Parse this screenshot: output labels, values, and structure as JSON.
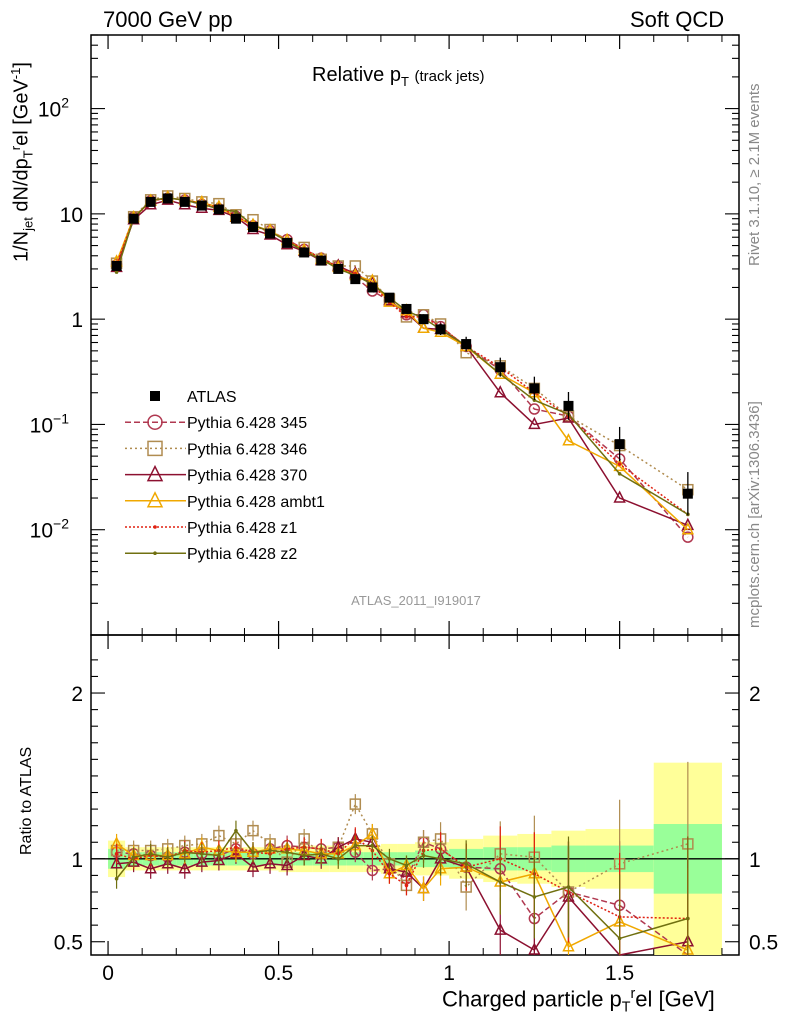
{
  "header": {
    "left": "7000 GeV pp",
    "right": "Soft QCD"
  },
  "side_text": {
    "rivet": "Rivet 3.1.10, ≥ 2.1M events",
    "mcplots": "mcplots.cern.ch [arXiv:1306.3436]"
  },
  "colors": {
    "data": "#000000",
    "p345": "#b03850",
    "p346": "#b08c50",
    "p370": "#8c1030",
    "ambt1": "#f0a800",
    "z1": "#e02010",
    "z2": "#707010",
    "band_inner": "#99ff99",
    "band_outer": "#ffff99"
  },
  "chart_data": [
    {
      "type": "line",
      "title": "Relative p_T (track jets)",
      "ylabel": "1/N_jet dN/dp_T^rel [GeV^-1]",
      "xlabel": "",
      "yscale": "log",
      "xlim": [
        -0.05,
        1.85
      ],
      "ylim": [
        0.001,
        500
      ],
      "x_ticks": [
        "0",
        "0.5",
        "1",
        "1.5"
      ],
      "y_ticks": [
        "10^-2",
        "10^-1",
        "1",
        "10",
        "10^2"
      ],
      "watermark": "ATLAS_2011_I919017",
      "legend_position": "middle-left",
      "x": [
        0.025,
        0.075,
        0.125,
        0.175,
        0.225,
        0.275,
        0.325,
        0.375,
        0.425,
        0.475,
        0.525,
        0.575,
        0.625,
        0.675,
        0.725,
        0.775,
        0.825,
        0.875,
        0.925,
        0.975,
        1.05,
        1.15,
        1.25,
        1.35,
        1.5,
        1.7
      ],
      "series": [
        {
          "name": "ATLAS",
          "values": [
            3.2,
            9.0,
            13.0,
            14.0,
            13.0,
            12.0,
            11.0,
            9.0,
            7.5,
            6.5,
            5.3,
            4.3,
            3.6,
            3.0,
            2.4,
            2.0,
            1.6,
            1.25,
            1.0,
            0.8,
            0.58,
            0.35,
            0.22,
            0.15,
            0.065,
            0.022
          ]
        },
        {
          "name": "Pythia 6.428 345",
          "values": [
            3.3,
            9.3,
            13.3,
            14.1,
            13.5,
            12.3,
            11.2,
            9.5,
            7.7,
            6.9,
            5.7,
            4.6,
            3.8,
            3.2,
            2.5,
            1.85,
            1.5,
            1.1,
            1.1,
            0.85,
            0.55,
            0.33,
            0.14,
            0.12,
            0.047,
            0.0085
          ]
        },
        {
          "name": "Pythia 6.428 346",
          "values": [
            3.4,
            9.4,
            13.6,
            14.8,
            14.0,
            13.0,
            12.5,
            9.8,
            8.8,
            7.1,
            5.2,
            4.8,
            3.7,
            3.2,
            3.2,
            2.3,
            1.55,
            1.05,
            1.1,
            0.9,
            0.48,
            0.36,
            0.22,
            0.12,
            0.063,
            0.024
          ]
        },
        {
          "name": "Pythia 6.428 370",
          "values": [
            3.1,
            8.8,
            12.2,
            13.5,
            12.2,
            11.3,
            10.8,
            9.3,
            7.1,
            6.3,
            5.1,
            4.4,
            3.6,
            3.2,
            2.7,
            2.2,
            1.5,
            1.15,
            0.82,
            0.8,
            0.55,
            0.2,
            0.1,
            0.115,
            0.02,
            0.011
          ]
        },
        {
          "name": "Pythia 6.428 ambt1",
          "values": [
            3.5,
            9.2,
            13.2,
            14.3,
            13.4,
            12.8,
            11.6,
            9.4,
            7.8,
            6.9,
            5.6,
            4.5,
            3.7,
            3.1,
            2.6,
            2.3,
            1.45,
            1.2,
            0.82,
            0.75,
            0.55,
            0.3,
            0.2,
            0.07,
            0.04,
            0.01
          ]
        },
        {
          "name": "Pythia 6.428 z1",
          "values": [
            3.3,
            9.0,
            13.2,
            14.1,
            13.6,
            12.5,
            11.6,
            9.6,
            7.8,
            6.7,
            5.6,
            4.6,
            3.8,
            3.1,
            2.7,
            2.1,
            1.45,
            1.05,
            1.05,
            0.85,
            0.55,
            0.35,
            0.2,
            0.12,
            0.042,
            0.014
          ]
        },
        {
          "name": "Pythia 6.428 z2",
          "values": [
            2.8,
            9.1,
            13.4,
            14.2,
            13.5,
            12.3,
            11.2,
            10.5,
            7.8,
            6.8,
            5.5,
            4.4,
            3.7,
            3.0,
            2.6,
            2.15,
            1.6,
            1.2,
            1.02,
            0.8,
            0.56,
            0.3,
            0.17,
            0.125,
            0.034,
            0.014
          ]
        }
      ]
    },
    {
      "type": "line",
      "ylabel": "Ratio to ATLAS",
      "xlabel": "Charged particle p_T^rel [GeV]",
      "xlim": [
        -0.05,
        1.85
      ],
      "ylim": [
        0.42,
        2.35
      ],
      "y_ticks": [
        "0.5",
        "1",
        "2"
      ],
      "x_ticks": [
        "0",
        "0.5",
        "1",
        "1.5"
      ],
      "band_edges": [
        0.0,
        0.05,
        0.1,
        0.15,
        0.2,
        0.25,
        0.3,
        0.35,
        0.4,
        0.45,
        0.5,
        0.55,
        0.6,
        0.65,
        0.7,
        0.75,
        0.8,
        0.85,
        0.9,
        0.95,
        1.0,
        1.1,
        1.2,
        1.3,
        1.4,
        1.6,
        1.8
      ],
      "band_inner": [
        0.06,
        0.04,
        0.04,
        0.04,
        0.04,
        0.04,
        0.04,
        0.04,
        0.04,
        0.04,
        0.04,
        0.04,
        0.04,
        0.04,
        0.04,
        0.04,
        0.04,
        0.04,
        0.05,
        0.05,
        0.06,
        0.07,
        0.07,
        0.08,
        0.08,
        0.21
      ],
      "band_outer": [
        0.11,
        0.07,
        0.07,
        0.07,
        0.07,
        0.07,
        0.07,
        0.07,
        0.07,
        0.07,
        0.08,
        0.08,
        0.08,
        0.08,
        0.08,
        0.08,
        0.09,
        0.09,
        0.1,
        0.1,
        0.12,
        0.14,
        0.15,
        0.17,
        0.18,
        0.58
      ],
      "series": [
        {
          "name": "Pythia 6.428 345",
          "values": [
            1.04,
            1.03,
            1.02,
            1.01,
            1.04,
            1.03,
            1.02,
            1.06,
            1.03,
            1.06,
            1.08,
            1.07,
            1.06,
            1.07,
            1.04,
            0.93,
            0.94,
            0.88,
            1.1,
            1.06,
            0.95,
            0.94,
            0.64,
            0.8,
            0.72,
            0.38
          ]
        },
        {
          "name": "Pythia 6.428 346",
          "values": [
            1.05,
            1.05,
            1.05,
            1.06,
            1.08,
            1.09,
            1.14,
            1.09,
            1.17,
            1.09,
            0.98,
            1.12,
            1.03,
            1.07,
            1.33,
            1.15,
            0.97,
            0.84,
            1.1,
            1.12,
            0.83,
            1.03,
            1.01,
            0.8,
            0.97,
            1.09
          ]
        },
        {
          "name": "Pythia 6.428 370",
          "values": [
            0.97,
            0.98,
            0.94,
            0.97,
            0.94,
            0.98,
            0.99,
            1.03,
            0.95,
            0.97,
            0.96,
            1.02,
            1.0,
            1.07,
            1.12,
            1.1,
            0.94,
            0.92,
            0.82,
            1.0,
            0.95,
            0.57,
            0.45,
            0.77,
            0.31,
            0.5
          ]
        },
        {
          "name": "Pythia 6.428 ambt1",
          "values": [
            1.09,
            1.02,
            1.02,
            1.02,
            1.03,
            1.07,
            1.05,
            1.04,
            1.04,
            1.06,
            1.06,
            1.05,
            1.03,
            1.03,
            1.08,
            1.15,
            0.91,
            0.96,
            0.82,
            0.94,
            0.95,
            0.86,
            0.91,
            0.47,
            0.62,
            0.45
          ]
        },
        {
          "name": "Pythia 6.428 z1",
          "values": [
            1.03,
            1.0,
            1.02,
            1.01,
            1.05,
            1.04,
            1.05,
            1.07,
            1.04,
            1.03,
            1.06,
            1.07,
            1.06,
            1.03,
            1.13,
            1.05,
            0.91,
            0.84,
            1.05,
            1.06,
            0.95,
            1.0,
            0.91,
            0.8,
            0.65,
            0.64
          ]
        },
        {
          "name": "Pythia 6.428 z2",
          "values": [
            0.88,
            1.01,
            1.03,
            1.01,
            1.04,
            1.03,
            1.02,
            1.17,
            1.04,
            1.05,
            1.04,
            1.02,
            1.03,
            1.0,
            1.08,
            1.08,
            1.0,
            0.96,
            1.02,
            1.0,
            0.97,
            0.86,
            0.77,
            0.83,
            0.52,
            0.64
          ]
        }
      ]
    }
  ]
}
